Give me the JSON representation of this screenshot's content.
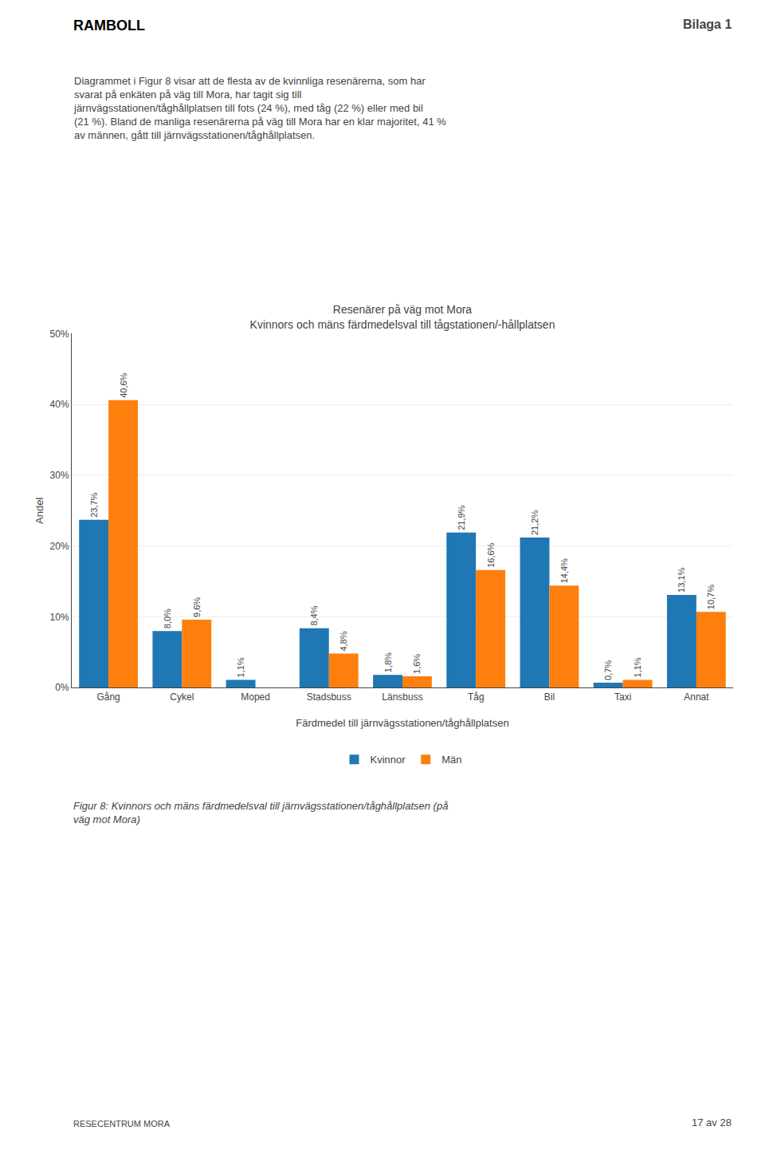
{
  "chart_data": {
    "type": "bar",
    "title": "Resenärer på väg mot Mora",
    "subtitle": "Kvinnors och mäns färdmedelsval till tågstationen/-hållplatsen",
    "categories": [
      "Gång",
      "Cykel",
      "Moped",
      "Stadsbuss",
      "Länsbuss",
      "Tåg",
      "Bil",
      "Taxi",
      "Annat"
    ],
    "series": [
      {
        "name": "Kvinnor",
        "values": [
          23.7,
          8.0,
          1.1,
          8.4,
          1.8,
          21.9,
          21.2,
          0.7,
          13.1
        ],
        "value_labels": [
          "23,7%",
          "8,0%",
          "1,1%",
          "8,4%",
          "1,8%",
          "21,9%",
          "21,2%",
          "0,7%",
          "13,1%"
        ]
      },
      {
        "name": "Män",
        "values": [
          40.6,
          9.6,
          0.0,
          4.8,
          1.6,
          16.6,
          14.4,
          1.1,
          10.7
        ],
        "value_labels": [
          "40,6%",
          "9,6%",
          null,
          "4,8%",
          "1,6%",
          "16,6%",
          "14,4%",
          "1,1%",
          "10,7%"
        ]
      }
    ],
    "xlabel": "Färdmedel till järnvägsstationen/tåghållplatsen",
    "ylabel": "Andel",
    "ylim": [
      0,
      50
    ],
    "yticks": [
      {
        "value": 0,
        "label": "0%"
      },
      {
        "value": 10,
        "label": "10%"
      },
      {
        "value": 20,
        "label": "20%"
      },
      {
        "value": 30,
        "label": "30%"
      },
      {
        "value": 40,
        "label": "40%"
      },
      {
        "value": 50,
        "label": "50%"
      }
    ],
    "grid": true,
    "legend": "bottom",
    "data_labels": true,
    "annotations": [
      "RAMBOLL",
      "Bilaga 1",
      "Diagrammet i Figur 8 visar att de flesta av de kvinnliga resenärerna, som har\nsvarat på enkäten på väg till Mora, har tagit sig till\njärnvägsstationen/tåghållplatsen till fots (24 %), med tåg (22 %) eller med bil\n(21 %). Bland de manliga resenärerna på väg till Mora har en klar majoritet, 41 %\nav männen, gått till järnvägsstationen/tåghållplatsen.",
      "Figur 8: Kvinnors och mäns färdmedelsval till järnvägsstationen/tåghållplatsen (på\nväg mot Mora)",
      "17 av 28",
      "RESECENTRUM MORA"
    ]
  }
}
